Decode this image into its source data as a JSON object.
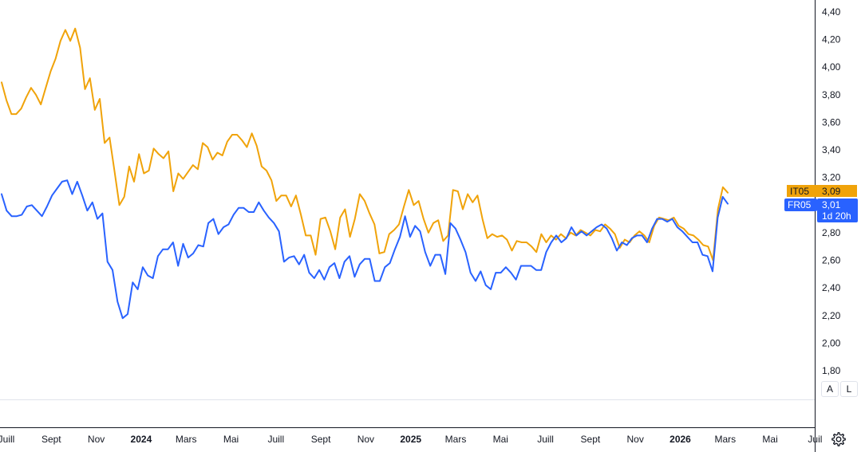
{
  "chart_data": {
    "type": "line",
    "ylim": [
      1.7,
      4.45
    ],
    "y_ticks": [
      "4,40",
      "4,20",
      "4,00",
      "3,80",
      "3,60",
      "3,40",
      "3,20",
      "3,00",
      "2,80",
      "2,60",
      "2,40",
      "2,20",
      "2,00",
      "1,80"
    ],
    "x_ticks": [
      {
        "label": "Juill",
        "bold": false
      },
      {
        "label": "Sept",
        "bold": false
      },
      {
        "label": "Nov",
        "bold": false
      },
      {
        "label": "2024",
        "bold": true
      },
      {
        "label": "Mars",
        "bold": false
      },
      {
        "label": "Mai",
        "bold": false
      },
      {
        "label": "Juill",
        "bold": false
      },
      {
        "label": "Sept",
        "bold": false
      },
      {
        "label": "Nov",
        "bold": false
      },
      {
        "label": "2025",
        "bold": true
      },
      {
        "label": "Mars",
        "bold": false
      },
      {
        "label": "Mai",
        "bold": false
      },
      {
        "label": "Juill",
        "bold": false
      },
      {
        "label": "Sept",
        "bold": false
      },
      {
        "label": "Nov",
        "bold": false
      },
      {
        "label": "2026",
        "bold": true
      },
      {
        "label": "Mars",
        "bold": false
      },
      {
        "label": "Mai",
        "bold": false
      },
      {
        "label": "Juil",
        "bold": false
      }
    ],
    "series": [
      {
        "name": "IT05",
        "color": "#f0a30a",
        "last_value": "3,09",
        "values": [
          3.89,
          3.76,
          3.66,
          3.66,
          3.7,
          3.78,
          3.85,
          3.8,
          3.73,
          3.85,
          3.97,
          4.06,
          4.19,
          4.27,
          4.19,
          4.28,
          4.14,
          3.84,
          3.92,
          3.69,
          3.77,
          3.45,
          3.49,
          3.25,
          3.0,
          3.06,
          3.28,
          3.17,
          3.37,
          3.23,
          3.25,
          3.41,
          3.37,
          3.34,
          3.39,
          3.1,
          3.23,
          3.19,
          3.24,
          3.29,
          3.26,
          3.45,
          3.42,
          3.33,
          3.38,
          3.36,
          3.46,
          3.51,
          3.51,
          3.47,
          3.42,
          3.52,
          3.43,
          3.28,
          3.25,
          3.18,
          3.03,
          3.07,
          3.07,
          2.99,
          3.07,
          2.93,
          2.78,
          2.78,
          2.64,
          2.9,
          2.91,
          2.81,
          2.68,
          2.91,
          2.97,
          2.77,
          2.9,
          3.08,
          3.03,
          2.94,
          2.86,
          2.65,
          2.66,
          2.79,
          2.82,
          2.86,
          2.99,
          3.11,
          3.0,
          3.03,
          2.9,
          2.8,
          2.87,
          2.89,
          2.74,
          2.78,
          3.11,
          3.1,
          2.97,
          3.08,
          3.02,
          3.07,
          2.9,
          2.76,
          2.79,
          2.77,
          2.78,
          2.75,
          2.67,
          2.74,
          2.73,
          2.73,
          2.7,
          2.66,
          2.79,
          2.73,
          2.78,
          2.75,
          2.79,
          2.76,
          2.8,
          2.78,
          2.82,
          2.8,
          2.78,
          2.82,
          2.81,
          2.86,
          2.83,
          2.79,
          2.69,
          2.75,
          2.73,
          2.78,
          2.81,
          2.78,
          2.73,
          2.85,
          2.91,
          2.9,
          2.89,
          2.91,
          2.85,
          2.83,
          2.79,
          2.78,
          2.75,
          2.71,
          2.7,
          2.6,
          2.97,
          3.13,
          3.09
        ]
      },
      {
        "name": "FR05",
        "color": "#2962ff",
        "last_value": "3,01",
        "extra_label": "1d 20h",
        "values": [
          3.08,
          2.96,
          2.92,
          2.92,
          2.93,
          2.99,
          3.0,
          2.96,
          2.92,
          2.99,
          3.07,
          3.12,
          3.17,
          3.18,
          3.08,
          3.17,
          3.07,
          2.96,
          3.02,
          2.9,
          2.94,
          2.59,
          2.53,
          2.3,
          2.18,
          2.21,
          2.44,
          2.39,
          2.55,
          2.49,
          2.47,
          2.63,
          2.68,
          2.68,
          2.73,
          2.56,
          2.72,
          2.62,
          2.65,
          2.71,
          2.7,
          2.87,
          2.9,
          2.79,
          2.84,
          2.86,
          2.93,
          2.98,
          2.98,
          2.95,
          2.95,
          3.02,
          2.96,
          2.91,
          2.87,
          2.81,
          2.59,
          2.62,
          2.63,
          2.57,
          2.64,
          2.51,
          2.47,
          2.53,
          2.46,
          2.55,
          2.58,
          2.47,
          2.59,
          2.63,
          2.48,
          2.57,
          2.61,
          2.61,
          2.45,
          2.45,
          2.55,
          2.58,
          2.68,
          2.77,
          2.92,
          2.77,
          2.85,
          2.81,
          2.66,
          2.56,
          2.64,
          2.64,
          2.5,
          2.87,
          2.83,
          2.75,
          2.66,
          2.51,
          2.45,
          2.52,
          2.42,
          2.39,
          2.51,
          2.51,
          2.55,
          2.51,
          2.46,
          2.56,
          2.56,
          2.56,
          2.53,
          2.53,
          2.66,
          2.73,
          2.78,
          2.73,
          2.76,
          2.84,
          2.78,
          2.81,
          2.78,
          2.81,
          2.84,
          2.86,
          2.83,
          2.76,
          2.67,
          2.73,
          2.71,
          2.76,
          2.78,
          2.78,
          2.73,
          2.83,
          2.9,
          2.9,
          2.88,
          2.9,
          2.84,
          2.81,
          2.77,
          2.73,
          2.73,
          2.64,
          2.63,
          2.52,
          2.91,
          3.06,
          3.01
        ]
      }
    ]
  },
  "controls": {
    "auto_label": "A",
    "log_label": "L"
  },
  "icons": {
    "settings": "settings-gear-icon"
  }
}
